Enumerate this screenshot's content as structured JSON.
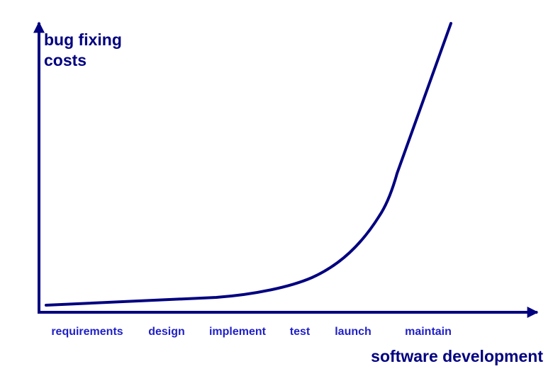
{
  "y_axis": {
    "label_lines": [
      "bug fixing",
      "costs"
    ]
  },
  "x_axis": {
    "label": "software development",
    "stages": [
      "requirements",
      "design",
      "implement",
      "test",
      "launch",
      "maintain"
    ]
  }
}
